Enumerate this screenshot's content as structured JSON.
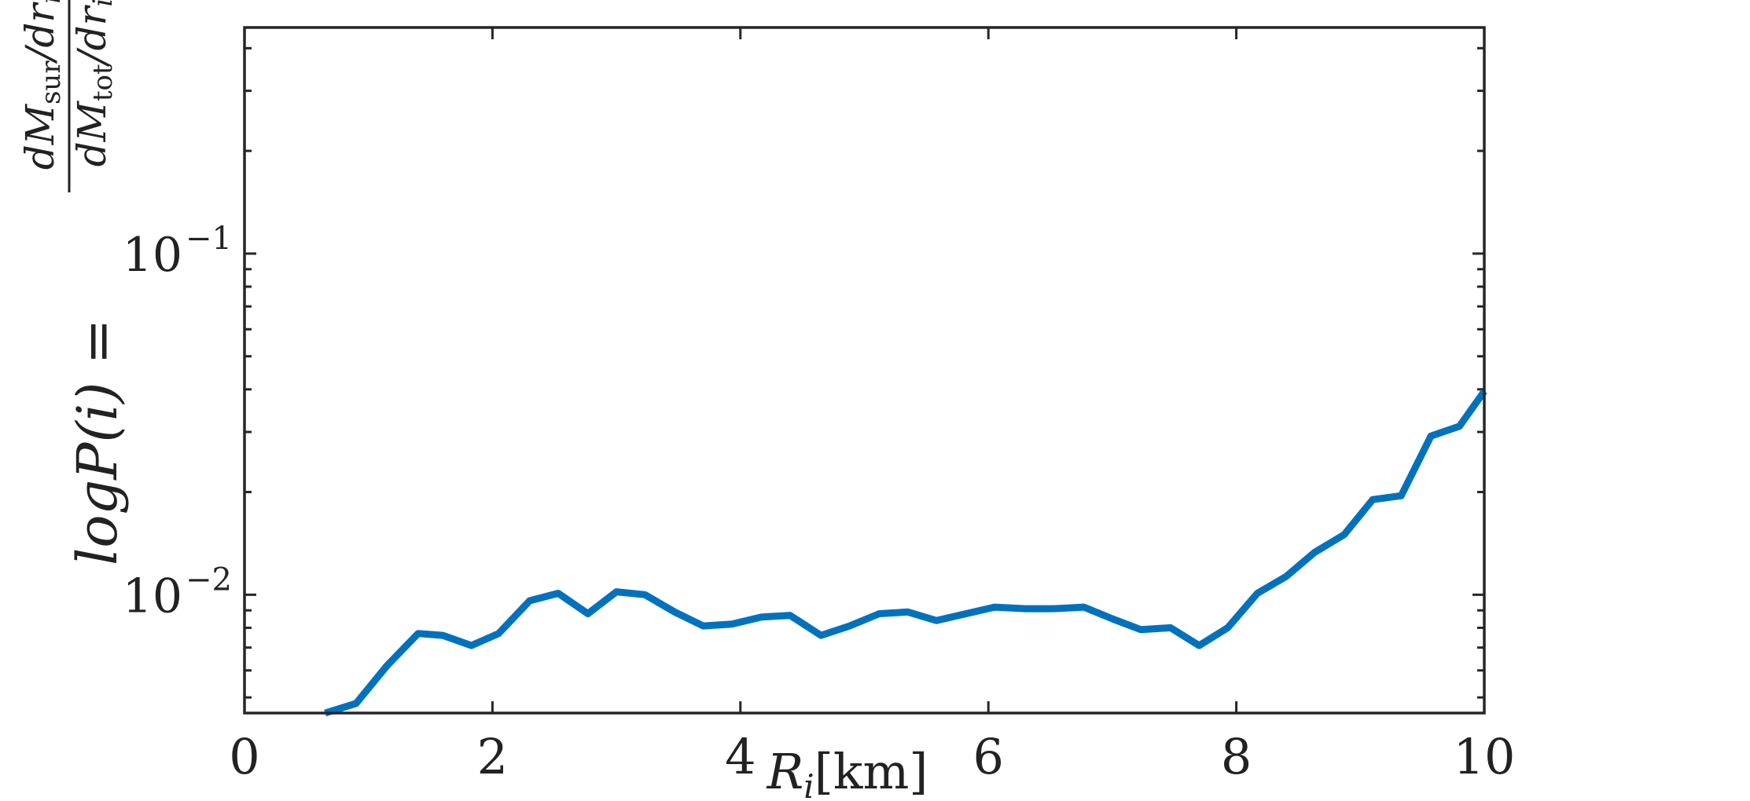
{
  "chart_data": {
    "type": "line",
    "title": "",
    "xlabel": "R_i[km]",
    "ylabel": "log P(i) = (dM_sur/dr_i)/(dM_tot/dr_i)",
    "xlim": [
      0,
      10
    ],
    "ylim": [
      0.0045,
      0.46
    ],
    "yscale": "log",
    "grid": false,
    "legend": "none",
    "line_color": "#0072BD",
    "x_ticks": [
      "0",
      "2",
      "4",
      "6",
      "8",
      "10"
    ],
    "x_tick_values": [
      0,
      2,
      4,
      6,
      8,
      10
    ],
    "y_ticks": [
      {
        "value": 0.1,
        "base": "10",
        "exp": "−1"
      },
      {
        "value": 0.01,
        "base": "10",
        "exp": "−2"
      }
    ],
    "series": [
      {
        "x": [
          0.65,
          0.9,
          1.15,
          1.4,
          1.6,
          1.83,
          2.05,
          2.3,
          2.53,
          2.77,
          3.0,
          3.23,
          3.47,
          3.7,
          3.93,
          4.17,
          4.4,
          4.65,
          4.88,
          5.12,
          5.35,
          5.58,
          5.82,
          6.05,
          6.3,
          6.53,
          6.77,
          7.0,
          7.23,
          7.47,
          7.7,
          7.93,
          8.17,
          8.4,
          8.63,
          8.87,
          9.1,
          9.33,
          9.57,
          9.8,
          10.0
        ],
        "y": [
          0.0042,
          0.0048,
          0.0062,
          0.0077,
          0.0076,
          0.0071,
          0.0077,
          0.0096,
          0.0101,
          0.0088,
          0.0102,
          0.01,
          0.0089,
          0.0081,
          0.0082,
          0.0086,
          0.0087,
          0.0076,
          0.0081,
          0.0088,
          0.0089,
          0.0084,
          0.0088,
          0.0092,
          0.0091,
          0.0091,
          0.0092,
          0.0085,
          0.0079,
          0.008,
          0.0071,
          0.008,
          0.0101,
          0.0113,
          0.0133,
          0.015,
          0.019,
          0.0195,
          0.0292,
          0.0312,
          0.0395
        ]
      }
    ],
    "ylabel_parts": {
      "lhs": "logP(i) =",
      "num": "dM",
      "num_sub": "sur",
      "num_tail": "/dr",
      "num_tail_sub": "i",
      "den": "dM",
      "den_sub": "tot",
      "den_tail": "/dr",
      "den_tail_sub": "i"
    },
    "xlabel_parts": {
      "var": "R",
      "sub": "i",
      "unit": "[km]"
    }
  }
}
